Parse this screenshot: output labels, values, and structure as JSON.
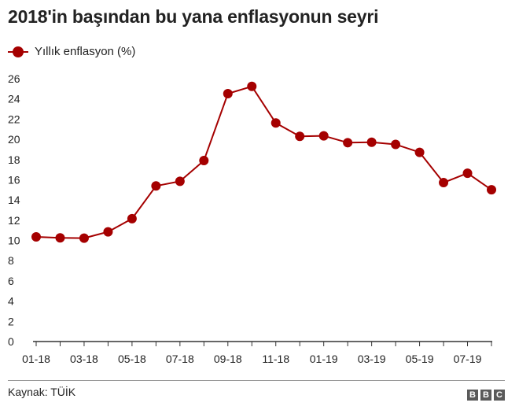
{
  "title": "2018'in başından bu yana enflasyonun seyri",
  "source": "Kaynak: TÜİK",
  "logo": [
    "B",
    "B",
    "C"
  ],
  "colors": {
    "series": "#a50000",
    "axis": "#333333",
    "text": "#222222"
  },
  "chart_data": {
    "type": "line",
    "series": [
      {
        "name": "Yıllık enflasyon (%)",
        "values": [
          10.35,
          10.26,
          10.23,
          10.85,
          12.15,
          15.39,
          15.85,
          17.9,
          24.52,
          25.24,
          21.62,
          20.3,
          20.35,
          19.67,
          19.71,
          19.5,
          18.71,
          15.72,
          16.65,
          15.01
        ]
      }
    ],
    "x": [
      "01-18",
      "02-18",
      "03-18",
      "04-18",
      "05-18",
      "06-18",
      "07-18",
      "08-18",
      "09-18",
      "10-18",
      "11-18",
      "12-18",
      "01-19",
      "02-19",
      "03-19",
      "04-19",
      "05-19",
      "06-19",
      "07-19",
      "08-19"
    ],
    "xtick_labels": [
      "01-18",
      "03-18",
      "05-18",
      "07-18",
      "09-18",
      "11-18",
      "01-19",
      "03-19",
      "05-19",
      "07-19"
    ],
    "yticks": [
      "0",
      "2",
      "4",
      "6",
      "8",
      "10",
      "12",
      "14",
      "16",
      "18",
      "20",
      "22",
      "24",
      "26"
    ],
    "ylim": [
      0,
      26
    ],
    "grid": false,
    "legend": "top-left"
  }
}
